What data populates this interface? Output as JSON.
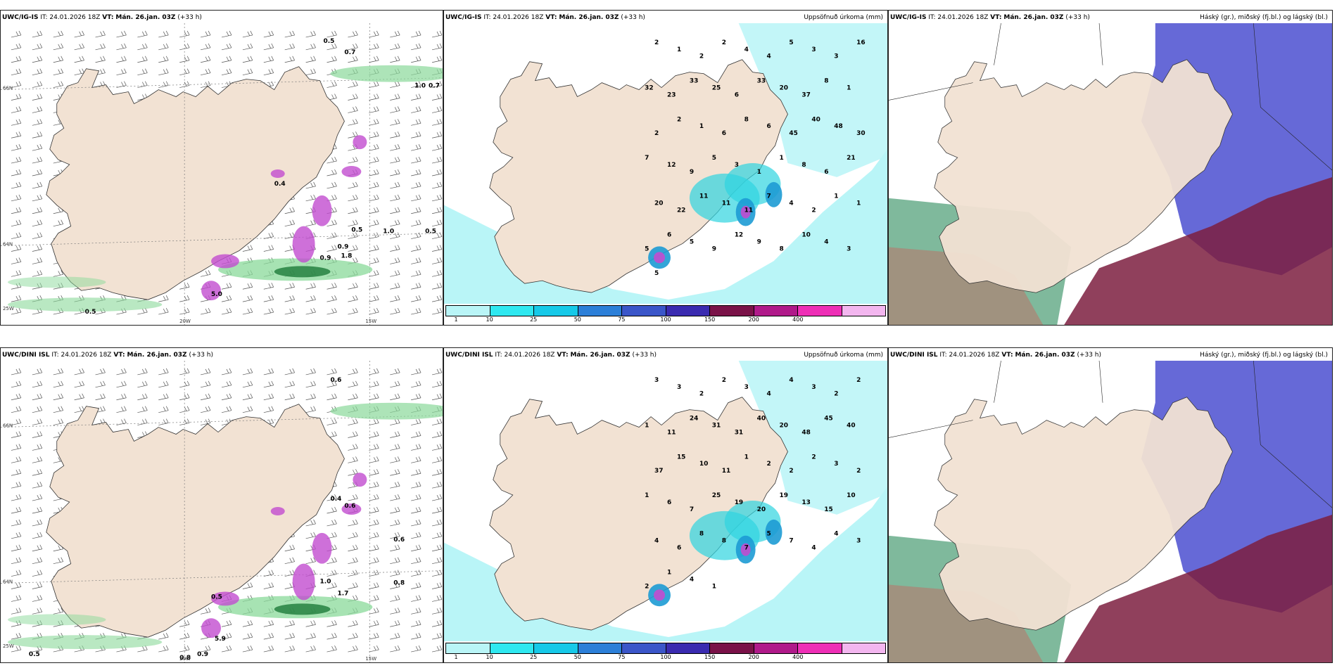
{
  "colors": {
    "land": "#f2e2d3",
    "sea": "#ffffff",
    "precip_light": "#b9f5f7",
    "precip_mid": "#2fd4e0",
    "precip_heavy": "#1d9bd4",
    "magenta": "#c24ccf",
    "green": "#8ad99a",
    "darkgreen": "#1e7a3a",
    "cloud_high": "#4b4fd0",
    "cloud_mid": "#7d1f3f",
    "cloud_low": "#2a8a5a"
  },
  "rows": [
    {
      "panels": [
        {
          "model": "UWC/IG-IS",
          "it": "IT: 24.01.2026 18Z",
          "vt_label": "VT:",
          "vt": "Mán. 26.jan. 03Z",
          "lead": "(+33 h)",
          "title": ""
        },
        {
          "model": "UWC/IG-IS",
          "it": "IT: 24.01.2026 18Z",
          "vt_label": "VT:",
          "vt": "Mán. 26.jan. 03Z",
          "lead": "(+33 h)",
          "title": "Uppsöfnuð úrkoma (mm)"
        },
        {
          "model": "UWC/IG-IS",
          "it": "IT: 24.01.2026 18Z",
          "vt_label": "VT:",
          "vt": "Mán. 26.jan. 03Z",
          "lead": "(+33 h)",
          "title": "Háský (gr.), miðský (fj.bl.) og lágský (bl.)"
        }
      ],
      "wind_labels": [
        "0.5",
        "0.7",
        "1.0",
        "0.7",
        "0.5",
        "1.0",
        "0.9",
        "0.9",
        "1.8",
        "0.4",
        "0.5",
        "5.0",
        "0.5"
      ],
      "precip_labels": [
        "2",
        "1",
        "2",
        "2",
        "4",
        "4",
        "5",
        "3",
        "3",
        "16",
        "32",
        "23",
        "33",
        "25",
        "6",
        "33",
        "20",
        "37",
        "8",
        "1",
        "2",
        "2",
        "1",
        "6",
        "8",
        "6",
        "45",
        "40",
        "48",
        "30",
        "7",
        "12",
        "9",
        "5",
        "3",
        "1",
        "1",
        "8",
        "6",
        "21",
        "20",
        "22",
        "11",
        "11",
        "11",
        "7",
        "4",
        "2",
        "1",
        "1",
        "5",
        "6",
        "5",
        "9",
        "12",
        "9",
        "8",
        "10",
        "4",
        "3",
        "5"
      ]
    },
    {
      "panels": [
        {
          "model": "UWC/DINI ISL",
          "it": "IT: 24.01.2026 18Z",
          "vt_label": "VT:",
          "vt": "Mán. 26.jan. 03Z",
          "lead": "(+33 h)",
          "title": ""
        },
        {
          "model": "UWC/DINI ISL",
          "it": "IT: 24.01.2026 18Z",
          "vt_label": "VT:",
          "vt": "Mán. 26.jan. 03Z",
          "lead": "(+33 h)",
          "title": "Uppsöfnuð úrkoma (mm)"
        },
        {
          "model": "UWC/DINI ISL",
          "it": "IT: 24.01.2026 18Z",
          "vt_label": "VT:",
          "vt": "Mán. 26.jan. 03Z",
          "lead": "(+33 h)",
          "title": "Háský (gr.), miðský (fj.bl.) og lágský (bl.)"
        }
      ],
      "wind_labels": [
        "0.6",
        "0.6",
        "0.8",
        "1.7",
        "1.0",
        "0.5",
        "0.8",
        "0.9",
        "0.5",
        "0.4",
        "0.6",
        "5.9"
      ],
      "precip_labels": [
        "3",
        "3",
        "2",
        "2",
        "3",
        "4",
        "4",
        "3",
        "2",
        "2",
        "1",
        "11",
        "24",
        "31",
        "31",
        "40",
        "20",
        "48",
        "45",
        "40",
        "37",
        "15",
        "10",
        "11",
        "1",
        "2",
        "2",
        "2",
        "3",
        "2",
        "1",
        "6",
        "7",
        "25",
        "19",
        "20",
        "19",
        "13",
        "15",
        "10",
        "4",
        "6",
        "8",
        "8",
        "7",
        "5",
        "7",
        "4",
        "4",
        "3",
        "2",
        "1",
        "4",
        "1"
      ]
    }
  ],
  "axis_labels": {
    "lat_66": "66N",
    "lat_64": "64N",
    "lon_20": "20W",
    "lon_15": "15W",
    "lon_25": "25W"
  },
  "colorbar": {
    "ticks": [
      "1",
      "10",
      "25",
      "50",
      "75",
      "100",
      "150",
      "200",
      "400"
    ],
    "colors": [
      "#b9f5f7",
      "#2fe8f0",
      "#16c9e8",
      "#2c7fd8",
      "#3b56c9",
      "#3a2bb0",
      "#7a1248",
      "#b01a8a",
      "#ee2fb6",
      "#f3b6ef"
    ]
  }
}
